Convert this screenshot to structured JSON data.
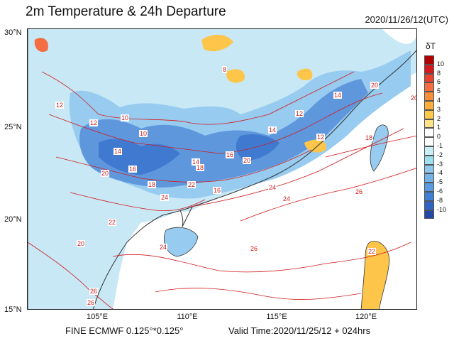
{
  "header": {
    "title": "2m Temperature & 24h Departure",
    "timestamp": "2020/11/26/12(UTC)"
  },
  "footer": {
    "model": "FINE ECMWF 0.125°*0.125°",
    "valid_time": "Valid Time:2020/11/25/12 + 024hrs"
  },
  "axes": {
    "lat_labels": [
      "30°N",
      "25°N",
      "20°N",
      "15°N"
    ],
    "lon_labels": [
      "105°E",
      "110°E",
      "115°E",
      "120°E"
    ]
  },
  "legend": {
    "title": "δT",
    "ticks": [
      "10",
      "8",
      "6",
      "5",
      "4",
      "3",
      "2",
      "1",
      "0",
      "-1",
      "-2",
      "-3",
      "-4",
      "-5",
      "-6",
      "-8",
      "-10"
    ],
    "colors": [
      "#b30000",
      "#d7191c",
      "#e8422e",
      "#f46d43",
      "#f98e3a",
      "#fdae3b",
      "#fdc94a",
      "#fde28a",
      "#ffffff",
      "#ffffff",
      "#c9eef6",
      "#9edff0",
      "#8fc8ee",
      "#74b3e8",
      "#5b9ce0",
      "#3f7fd5",
      "#2e62c5",
      "#2248a8"
    ]
  },
  "map": {
    "contour_labels": [
      "12",
      "10",
      "14",
      "14",
      "16",
      "18",
      "20",
      "22",
      "24",
      "26",
      "20",
      "12",
      "16",
      "18",
      "20",
      "24",
      "26",
      "20",
      "22",
      "24",
      "26",
      "8",
      "10",
      "12",
      "14",
      "12",
      "14",
      "16",
      "18",
      "20",
      "22",
      "24",
      "26"
    ],
    "colors": {
      "cold_light": "#bfe4f5",
      "cold_mid": "#8ec4ec",
      "cold_dark": "#5b95dc",
      "warm": "#fdc64a",
      "contour": "#d21a1a",
      "coast": "#333333"
    }
  }
}
